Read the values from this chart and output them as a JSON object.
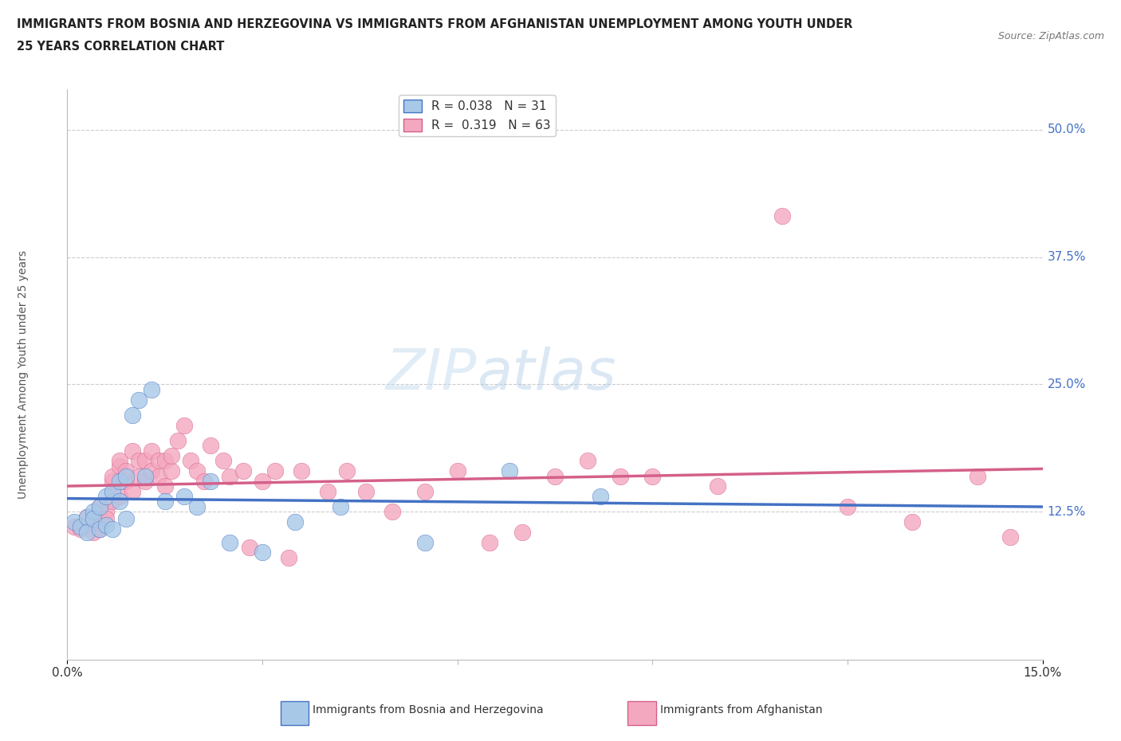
{
  "title_line1": "IMMIGRANTS FROM BOSNIA AND HERZEGOVINA VS IMMIGRANTS FROM AFGHANISTAN UNEMPLOYMENT AMONG YOUTH UNDER",
  "title_line2": "25 YEARS CORRELATION CHART",
  "source": "Source: ZipAtlas.com",
  "ylabel": "Unemployment Among Youth under 25 years",
  "xlim": [
    0.0,
    0.15
  ],
  "ylim": [
    -0.02,
    0.54
  ],
  "legend1_label": "Immigrants from Bosnia and Herzegovina",
  "legend2_label": "Immigrants from Afghanistan",
  "R1": 0.038,
  "N1": 31,
  "R2": 0.319,
  "N2": 63,
  "color_bosnia": "#a8c8e8",
  "color_afghanistan": "#f4a8c0",
  "color_line_bosnia": "#4472c4",
  "color_line_afghanistan": "#d4608a",
  "color_text_blue": "#4472c4",
  "bosnia_x": [
    0.001,
    0.002,
    0.003,
    0.003,
    0.004,
    0.004,
    0.005,
    0.005,
    0.006,
    0.006,
    0.007,
    0.007,
    0.008,
    0.008,
    0.009,
    0.009,
    0.01,
    0.011,
    0.012,
    0.013,
    0.015,
    0.018,
    0.02,
    0.022,
    0.025,
    0.03,
    0.035,
    0.042,
    0.055,
    0.068,
    0.082
  ],
  "bosnia_y": [
    0.115,
    0.11,
    0.12,
    0.105,
    0.125,
    0.118,
    0.13,
    0.108,
    0.14,
    0.112,
    0.145,
    0.108,
    0.155,
    0.135,
    0.16,
    0.118,
    0.22,
    0.235,
    0.16,
    0.245,
    0.135,
    0.14,
    0.13,
    0.155,
    0.095,
    0.085,
    0.115,
    0.13,
    0.095,
    0.165,
    0.14
  ],
  "afghanistan_x": [
    0.001,
    0.002,
    0.003,
    0.004,
    0.004,
    0.005,
    0.005,
    0.006,
    0.006,
    0.007,
    0.007,
    0.007,
    0.008,
    0.008,
    0.008,
    0.009,
    0.009,
    0.01,
    0.01,
    0.011,
    0.011,
    0.012,
    0.012,
    0.013,
    0.013,
    0.014,
    0.014,
    0.015,
    0.015,
    0.016,
    0.016,
    0.017,
    0.018,
    0.019,
    0.02,
    0.021,
    0.022,
    0.024,
    0.025,
    0.027,
    0.028,
    0.03,
    0.032,
    0.034,
    0.036,
    0.04,
    0.043,
    0.046,
    0.05,
    0.055,
    0.06,
    0.065,
    0.07,
    0.075,
    0.08,
    0.085,
    0.09,
    0.1,
    0.11,
    0.12,
    0.13,
    0.14,
    0.145
  ],
  "afghanistan_y": [
    0.11,
    0.108,
    0.12,
    0.115,
    0.105,
    0.13,
    0.108,
    0.125,
    0.118,
    0.135,
    0.155,
    0.16,
    0.14,
    0.17,
    0.175,
    0.155,
    0.165,
    0.145,
    0.185,
    0.16,
    0.175,
    0.155,
    0.175,
    0.165,
    0.185,
    0.175,
    0.16,
    0.15,
    0.175,
    0.165,
    0.18,
    0.195,
    0.21,
    0.175,
    0.165,
    0.155,
    0.19,
    0.175,
    0.16,
    0.165,
    0.09,
    0.155,
    0.165,
    0.08,
    0.165,
    0.145,
    0.165,
    0.145,
    0.125,
    0.145,
    0.165,
    0.095,
    0.105,
    0.16,
    0.175,
    0.16,
    0.16,
    0.15,
    0.415,
    0.13,
    0.115,
    0.16,
    0.1
  ],
  "ytick_positions": [
    0.0,
    0.125,
    0.25,
    0.375,
    0.5
  ],
  "ytick_labels": [
    "",
    "12.5%",
    "25.0%",
    "37.5%",
    "50.0%"
  ]
}
